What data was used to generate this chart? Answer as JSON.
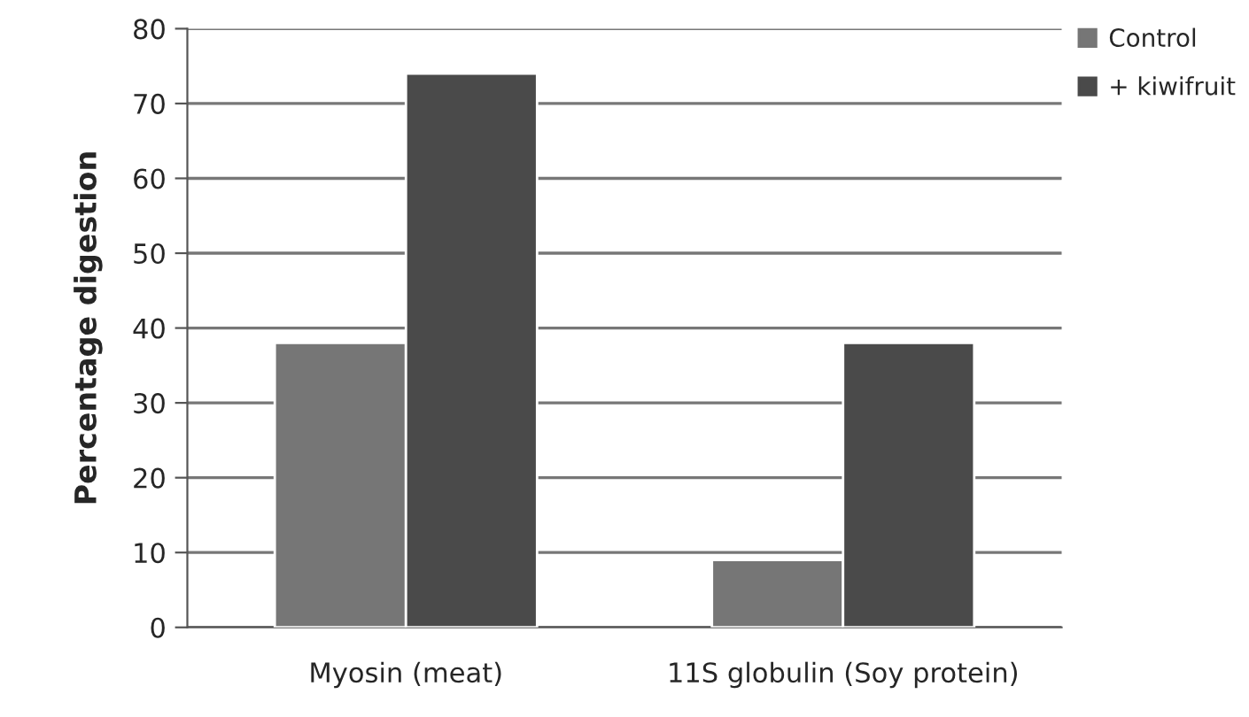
{
  "chart_data": {
    "type": "bar",
    "ylabel": "Percentage digestion",
    "categories": [
      "Myosin (meat)",
      "11S globulin (Soy protein)"
    ],
    "series": [
      {
        "name": "Control",
        "color": "#767676",
        "values": [
          38,
          9
        ]
      },
      {
        "name": "+ kiwifruit",
        "color": "#4a4a4a",
        "values": [
          74,
          38
        ]
      }
    ],
    "ylim": [
      0,
      80
    ],
    "yticks": [
      0,
      10,
      20,
      30,
      40,
      50,
      60,
      70,
      80
    ],
    "grid": "y",
    "legend": "top right"
  }
}
